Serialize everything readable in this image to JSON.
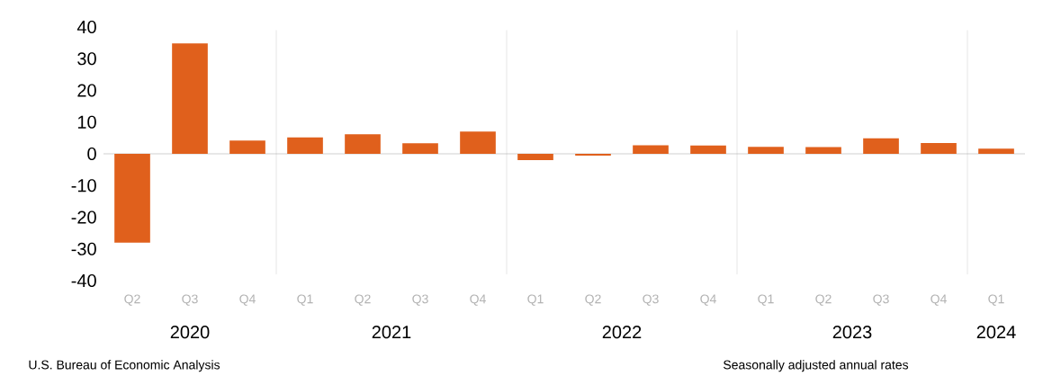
{
  "chart_data": {
    "type": "bar",
    "categories": [
      "Q2",
      "Q3",
      "Q4",
      "Q1",
      "Q2",
      "Q3",
      "Q4",
      "Q1",
      "Q2",
      "Q3",
      "Q4",
      "Q1",
      "Q2",
      "Q3",
      "Q4",
      "Q1"
    ],
    "values": [
      -28.0,
      34.8,
      4.2,
      5.2,
      6.2,
      3.3,
      7.0,
      -2.0,
      -0.6,
      2.7,
      2.6,
      2.2,
      2.1,
      4.9,
      3.4,
      1.6
    ],
    "color": "#e0601c",
    "ylim": [
      -40,
      40
    ],
    "yticks": [
      -40,
      -30,
      -20,
      -10,
      0,
      10,
      20,
      30,
      40
    ],
    "grid": false,
    "annotations": [
      "2020",
      "2021",
      "2022",
      "2023",
      "2024",
      "U.S. Bureau of Economic Analysis",
      "Seasonally adjusted annual rates"
    ]
  }
}
